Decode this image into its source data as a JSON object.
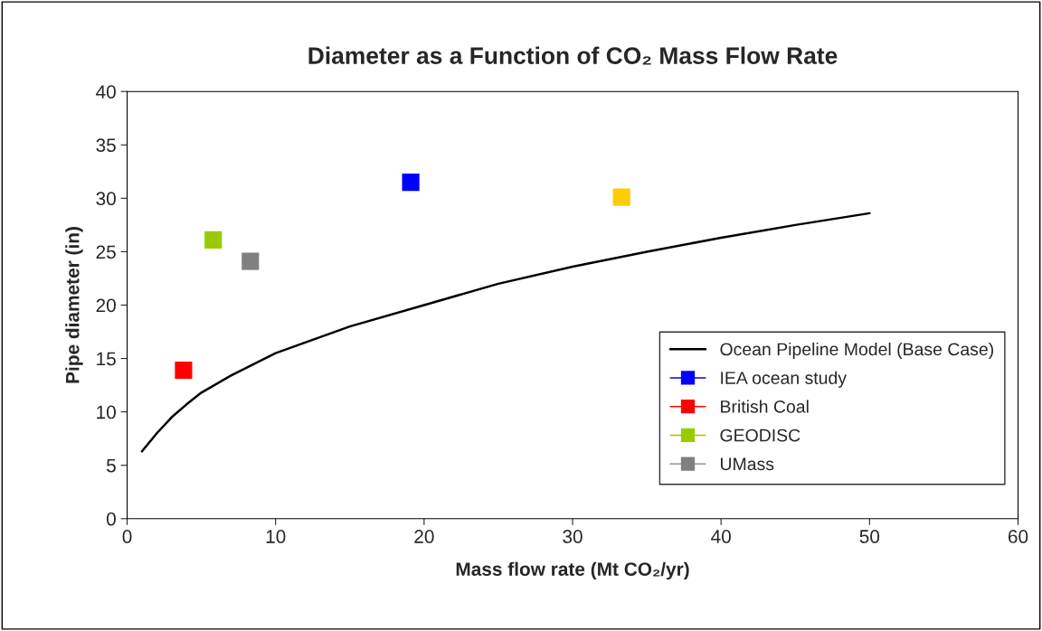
{
  "chart_data": {
    "type": "scatter",
    "title": "Diameter as a Function of CO₂ Mass Flow Rate",
    "xlabel": "Mass flow rate (Mt CO₂/yr)",
    "ylabel": "Pipe diameter (in)",
    "xlim": [
      0,
      60
    ],
    "xticks": [
      0,
      10,
      20,
      30,
      40,
      50,
      60
    ],
    "ylim": [
      0,
      40
    ],
    "yticks": [
      0,
      5,
      10,
      15,
      20,
      25,
      30,
      35,
      40
    ],
    "grid": false,
    "legend": "bottom right",
    "marker": "square",
    "series": [
      {
        "name": "Ocean Pipeline Model (Base Case)",
        "type": "line",
        "color": "#000000",
        "marker": "none",
        "x": [
          1,
          2,
          3,
          4,
          5,
          7,
          10,
          15,
          20,
          25,
          30,
          35,
          40,
          45,
          50
        ],
        "values": [
          6.3,
          8.0,
          9.5,
          10.7,
          11.8,
          13.4,
          15.5,
          18.0,
          20.0,
          22.0,
          23.6,
          25.0,
          26.3,
          27.5,
          28.6
        ]
      },
      {
        "name": "IEA ocean study",
        "color": "#0000ff",
        "x": [
          19.1
        ],
        "values": [
          31.5
        ]
      },
      {
        "name": "British Coal",
        "color": "#ff0000",
        "x": [
          3.8
        ],
        "values": [
          13.9
        ]
      },
      {
        "name": "GEODISC",
        "color": "#99cc00",
        "x": [
          5.8
        ],
        "values": [
          26.1
        ]
      },
      {
        "color": "#ffcc00",
        "x": [
          33.3
        ],
        "values": [
          30.1
        ]
      },
      {
        "name": "UMass",
        "color": "#808080",
        "x": [
          8.3
        ],
        "values": [
          24.1
        ]
      }
    ]
  }
}
